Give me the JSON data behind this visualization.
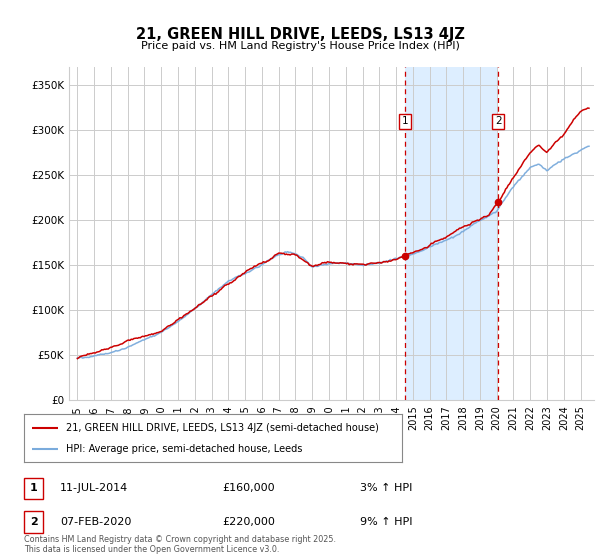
{
  "title": "21, GREEN HILL DRIVE, LEEDS, LS13 4JZ",
  "subtitle": "Price paid vs. HM Land Registry's House Price Index (HPI)",
  "footer": "Contains HM Land Registry data © Crown copyright and database right 2025.\nThis data is licensed under the Open Government Licence v3.0.",
  "legend_line1": "21, GREEN HILL DRIVE, LEEDS, LS13 4JZ (semi-detached house)",
  "legend_line2": "HPI: Average price, semi-detached house, Leeds",
  "sale1_date": "11-JUL-2014",
  "sale1_price": "£160,000",
  "sale1_info": "3% ↑ HPI",
  "sale2_date": "07-FEB-2020",
  "sale2_price": "£220,000",
  "sale2_info": "9% ↑ HPI",
  "sale1_year": 2014.52,
  "sale2_year": 2020.09,
  "sale1_value": 160000,
  "sale2_value": 220000,
  "hpi_color": "#7aabdc",
  "price_color": "#cc0000",
  "vline_color": "#cc0000",
  "dot_color": "#cc0000",
  "background_color": "#ffffff",
  "plot_bg_color": "#ffffff",
  "grid_color": "#cccccc",
  "span_color": "#ddeeff",
  "ylim": [
    0,
    370000
  ],
  "xlim_start": 1994.5,
  "xlim_end": 2025.8,
  "yticks": [
    0,
    50000,
    100000,
    150000,
    200000,
    250000,
    300000,
    350000
  ],
  "ytick_labels": [
    "£0",
    "£50K",
    "£100K",
    "£150K",
    "£200K",
    "£250K",
    "£300K",
    "£350K"
  ],
  "xticks": [
    1995,
    1996,
    1997,
    1998,
    1999,
    2000,
    2001,
    2002,
    2003,
    2004,
    2005,
    2006,
    2007,
    2008,
    2009,
    2010,
    2011,
    2012,
    2013,
    2014,
    2015,
    2016,
    2017,
    2018,
    2019,
    2020,
    2021,
    2022,
    2023,
    2024,
    2025
  ]
}
